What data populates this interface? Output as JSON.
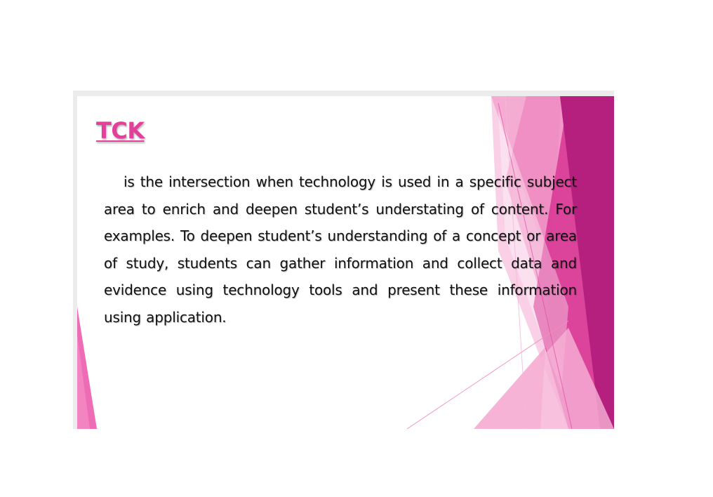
{
  "slide": {
    "title": "TCK",
    "body": "is the intersection  when technology is used in a specific subject area to enrich and deepen student’s  understating  of content. For examples. To deepen student’s  understanding of a concept  or area of study, students can gather information and collect data and evidence  using technology tools and present these information using application."
  },
  "theme": {
    "accent": "#e2409a",
    "magenta_dark": "#b5207e",
    "pink_light": "#f4a6cf",
    "text": "#111111"
  }
}
